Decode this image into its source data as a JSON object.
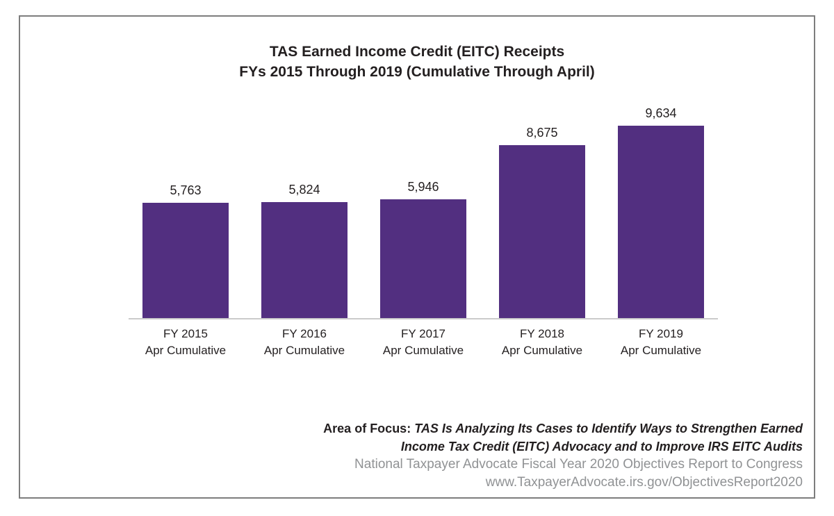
{
  "title": {
    "line1": "TAS Earned Income Credit (EITC) Receipts",
    "line2": "FYs 2015 Through 2019 (Cumulative Through April)"
  },
  "chart_data": {
    "type": "bar",
    "title": "TAS Earned Income Credit (EITC) Receipts FYs 2015 Through 2019 (Cumulative Through April)",
    "categories": [
      "FY 2015",
      "FY 2016",
      "FY 2017",
      "FY 2018",
      "FY 2019"
    ],
    "category_sublabel": "Apr Cumulative",
    "values": [
      5763,
      5824,
      5946,
      8675,
      9634
    ],
    "value_labels": [
      "5,763",
      "5,824",
      "5,946",
      "8,675",
      "9,634"
    ],
    "bar_color": "#522f80",
    "axis_line_color": "#cbcbcb",
    "ylim": [
      0,
      9634
    ],
    "grid": "off",
    "legend": "none",
    "xlabel": "",
    "ylabel": ""
  },
  "footer": {
    "area_label": "Area of Focus:",
    "focus_line1": "TAS Is Analyzing Its Cases to Identify Ways to Strengthen Earned",
    "focus_line2": "Income Tax Credit (EITC) Advocacy and to Improve IRS EITC Audits",
    "source_line": "National Taxpayer Advocate Fiscal Year 2020 Objectives Report to Congress",
    "url_line": "www.TaxpayerAdvocate.irs.gov/ObjectivesReport2020"
  },
  "colors": {
    "frame_border": "#7d7d7d",
    "title_text": "#231f20",
    "footer_gray": "#909294"
  }
}
